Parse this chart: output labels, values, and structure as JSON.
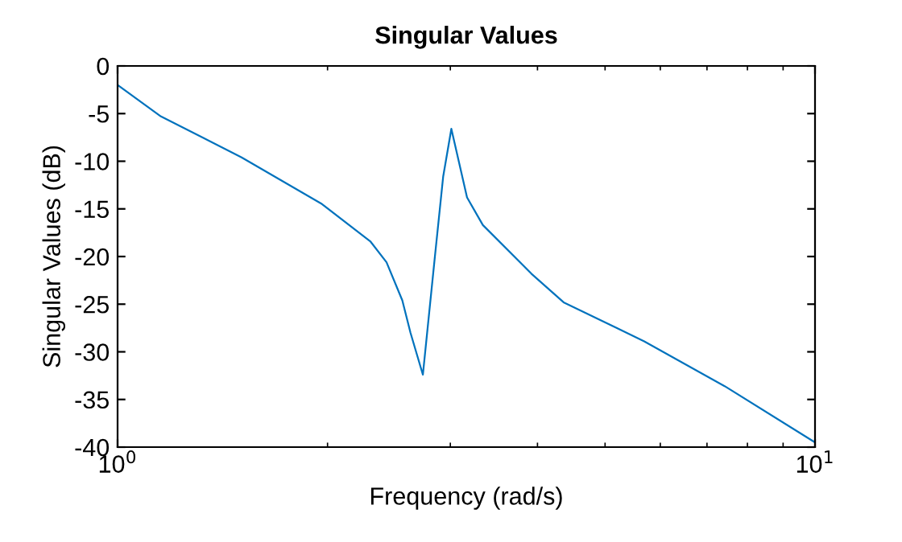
{
  "chart_data": {
    "type": "line",
    "title": "Singular Values",
    "xlabel": "Frequency (rad/s)",
    "ylabel": "Singular Values (dB)",
    "log": "x",
    "xlim": [
      1,
      10
    ],
    "xticks": [
      {
        "value": 1,
        "label": "10$^{0}$"
      },
      {
        "value": 10,
        "label": "10$^{1}$"
      }
    ],
    "ylim": [
      -40,
      0
    ],
    "yticks": [
      -40,
      -35,
      -30,
      -25,
      -20,
      -15,
      -10,
      -5,
      0
    ],
    "grid": false,
    "legend": false,
    "series": [
      {
        "color": "#0072bd",
        "x": [
          1,
          1.154,
          1.506,
          1.964,
          2.303,
          2.43,
          2.56,
          2.63,
          2.74,
          2.85,
          2.93,
          3.01,
          3.17,
          3.34,
          3.92,
          4.36,
          5.69,
          7.42,
          10
        ],
        "values": [
          -2.0,
          -5.3,
          -9.6,
          -14.5,
          -18.4,
          -20.6,
          -24.6,
          -28,
          -32.4,
          -20.1,
          -11.6,
          -6.6,
          -13.8,
          -16.7,
          -21.8,
          -24.8,
          -28.9,
          -33.6,
          -39.5
        ]
      }
    ]
  }
}
